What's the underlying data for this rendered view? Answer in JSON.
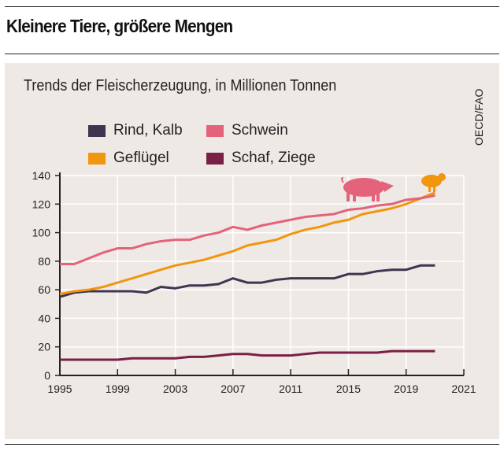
{
  "title": "Kleinere Tiere, größere Mengen",
  "chart_data": {
    "type": "line",
    "title": "Trends der Fleischerzeugung, in Millionen Tonnen",
    "source": "OECD/FAO",
    "xlabel": "",
    "ylabel": "",
    "x_tick_labels": [
      "1995",
      "1999",
      "2003",
      "2007",
      "2011",
      "2015",
      "2019",
      "2021"
    ],
    "y_ticks": [
      0,
      20,
      40,
      60,
      80,
      100,
      120,
      140
    ],
    "ylim": [
      0,
      140
    ],
    "grid": true,
    "legend_position": "top-left",
    "x": [
      1995,
      1996,
      1997,
      1998,
      1999,
      2000,
      2001,
      2002,
      2003,
      2004,
      2005,
      2006,
      2007,
      2008,
      2009,
      2010,
      2011,
      2012,
      2013,
      2014,
      2015,
      2016,
      2017,
      2018,
      2019,
      2020,
      2021
    ],
    "series": [
      {
        "name": "Rind, Kalb",
        "color": "#3e3550",
        "values": [
          55,
          58,
          59,
          59,
          59,
          59,
          58,
          62,
          61,
          63,
          63,
          64,
          68,
          65,
          65,
          67,
          68,
          68,
          68,
          68,
          71,
          71,
          73,
          74,
          74,
          77,
          77
        ]
      },
      {
        "name": "Schwein",
        "color": "#e4637a",
        "values": [
          78,
          78,
          82,
          86,
          89,
          89,
          92,
          94,
          95,
          95,
          98,
          100,
          104,
          102,
          105,
          107,
          109,
          111,
          112,
          113,
          116,
          117,
          119,
          120,
          123,
          124,
          126
        ]
      },
      {
        "name": "Geflügel",
        "color": "#f0960f",
        "values": [
          57,
          59,
          60,
          62,
          65,
          68,
          71,
          74,
          77,
          79,
          81,
          84,
          87,
          91,
          93,
          95,
          99,
          102,
          104,
          107,
          109,
          113,
          115,
          117,
          120,
          124,
          128
        ]
      },
      {
        "name": "Schaf, Ziege",
        "color": "#7a1f45",
        "values": [
          11,
          11,
          11,
          11,
          11,
          12,
          12,
          12,
          12,
          13,
          13,
          14,
          15,
          15,
          14,
          14,
          14,
          15,
          16,
          16,
          16,
          16,
          16,
          17,
          17,
          17,
          17
        ]
      }
    ]
  }
}
